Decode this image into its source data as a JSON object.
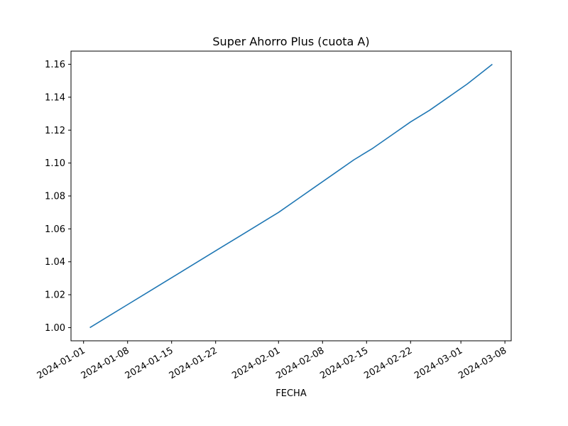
{
  "chart_data": {
    "type": "line",
    "title": "Super Ahorro Plus (cuota A)",
    "xlabel": "FECHA",
    "ylabel": "",
    "grid": false,
    "legend": "none",
    "line_color": "#1f77b4",
    "xlim": [
      "2023-12-30",
      "2024-03-09"
    ],
    "ylim": [
      0.992,
      1.168
    ],
    "x_ticks": [
      "2024-01-01",
      "2024-01-08",
      "2024-01-15",
      "2024-01-22",
      "2024-02-01",
      "2024-02-08",
      "2024-02-15",
      "2024-02-22",
      "2024-03-01",
      "2024-03-08"
    ],
    "y_ticks": [
      "1.00",
      "1.02",
      "1.04",
      "1.06",
      "1.08",
      "1.10",
      "1.12",
      "1.14",
      "1.16"
    ],
    "series": [
      {
        "x": [
          "2024-01-02",
          "2024-01-05",
          "2024-01-08",
          "2024-01-11",
          "2024-01-14",
          "2024-01-17",
          "2024-01-20",
          "2024-01-23",
          "2024-01-26",
          "2024-01-29",
          "2024-02-01",
          "2024-02-04",
          "2024-02-07",
          "2024-02-10",
          "2024-02-13",
          "2024-02-16",
          "2024-02-19",
          "2024-02-22",
          "2024-02-25",
          "2024-02-28",
          "2024-03-02",
          "2024-03-05",
          "2024-03-06"
        ],
        "y": [
          1.0,
          1.007,
          1.014,
          1.021,
          1.028,
          1.035,
          1.042,
          1.049,
          1.056,
          1.063,
          1.07,
          1.078,
          1.086,
          1.094,
          1.102,
          1.109,
          1.117,
          1.125,
          1.132,
          1.14,
          1.148,
          1.157,
          1.16
        ]
      }
    ]
  }
}
